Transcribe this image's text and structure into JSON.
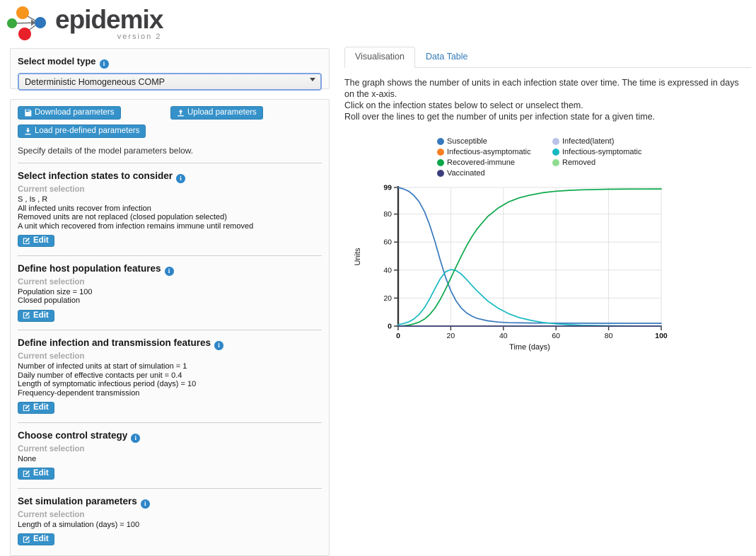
{
  "logo": {
    "title": "epidemix",
    "subtitle": "version 2"
  },
  "model_select": {
    "label": "Select model type",
    "value": "Deterministic Homogeneous COMP"
  },
  "toolbar": {
    "download_label": "Download parameters",
    "upload_label": "Upload parameters",
    "load_predefined_label": "Load pre-defined parameters",
    "instruction": "Specify details of the model parameters below."
  },
  "sections": [
    {
      "title": "Select infection states to consider",
      "subtitle": "Current selection",
      "details": [
        "S , Is , R",
        "All infected units recover from infection",
        "Removed units are not replaced (closed population selected)",
        "A unit which recovered from infection remains immune until removed"
      ],
      "edit_label": "Edit"
    },
    {
      "title": "Define host population features",
      "subtitle": "Current selection",
      "details": [
        "Population size = 100",
        "Closed population"
      ],
      "edit_label": "Edit"
    },
    {
      "title": "Define infection and transmission features",
      "subtitle": "Current selection",
      "details": [
        "Number of infected units at start of simulation = 1",
        "Daily number of effective contacts per unit = 0.4",
        "Length of symptomatic infectious period (days) = 10",
        "Frequency-dependent transmission"
      ],
      "edit_label": "Edit"
    },
    {
      "title": "Choose control strategy",
      "subtitle": "Current selection",
      "details": [
        "None"
      ],
      "edit_label": "Edit"
    },
    {
      "title": "Set simulation parameters",
      "subtitle": "Current selection",
      "details": [
        "Length of a simulation (days) = 100"
      ],
      "edit_label": "Edit"
    }
  ],
  "tabs": [
    {
      "label": "Visualisation",
      "active": true
    },
    {
      "label": "Data Table",
      "active": false
    }
  ],
  "description": [
    "The graph shows the number of units in each infection state over time. The time is expressed in days on the x-axis.",
    "Click on the infection states below to select or unselect them.",
    "Roll over the lines to get the number of units per infection state for a given time."
  ],
  "chart_data": {
    "type": "line",
    "title": "",
    "xlabel": "Time (days)",
    "ylabel": "Units",
    "xlim": [
      0,
      100
    ],
    "ylim": [
      0,
      99
    ],
    "x_ticks": [
      0,
      20,
      40,
      60,
      80,
      100
    ],
    "y_ticks": [
      0,
      20,
      40,
      60,
      80,
      99
    ],
    "grid": true,
    "legend_position": "top",
    "x": [
      0,
      2,
      4,
      6,
      8,
      10,
      12,
      14,
      16,
      18,
      20,
      22,
      24,
      26,
      28,
      30,
      34,
      38,
      42,
      46,
      50,
      55,
      60,
      65,
      70,
      80,
      90,
      100
    ],
    "series": [
      {
        "name": "Susceptible",
        "color": "#3779bd",
        "values": [
          99,
          98,
          96.3,
          93.3,
          88.7,
          81.8,
          72.2,
          60.3,
          47.2,
          34.9,
          25.3,
          18.1,
          12.9,
          9.4,
          7.1,
          5.5,
          3.8,
          2.9,
          2.4,
          2.3,
          2.2,
          2.15,
          2.1,
          2.05,
          2.05,
          2,
          2,
          2
        ]
      },
      {
        "name": "Infected(latent)",
        "color": "#b9c3ea",
        "values": [
          0,
          0,
          0,
          0,
          0,
          0,
          0,
          0,
          0,
          0,
          0,
          0,
          0,
          0,
          0,
          0,
          0,
          0,
          0,
          0,
          0,
          0,
          0,
          0,
          0,
          0,
          0,
          0
        ]
      },
      {
        "name": "Infectious-asymptomatic",
        "color": "#f87e20",
        "values": [
          0,
          0,
          0,
          0,
          0,
          0,
          0,
          0,
          0,
          0,
          0,
          0,
          0,
          0,
          0,
          0,
          0,
          0,
          0,
          0,
          0,
          0,
          0,
          0,
          0,
          0,
          0,
          0
        ]
      },
      {
        "name": "Infectious-symptomatic",
        "color": "#17b8c2",
        "values": [
          1,
          1.8,
          3,
          5.1,
          8.4,
          13.2,
          19.5,
          26.8,
          33.8,
          38.8,
          40.4,
          39.7,
          37.1,
          33.3,
          29.1,
          25.1,
          18,
          12.8,
          8.9,
          6.1,
          4.3,
          2.6,
          1.6,
          1,
          0.6,
          0.25,
          0.1,
          0.05
        ]
      },
      {
        "name": "Recovered-immune",
        "color": "#0aa74a",
        "values": [
          0,
          0.2,
          0.7,
          1.6,
          2.9,
          5,
          8.3,
          12.9,
          19,
          26.3,
          34.3,
          42.2,
          50,
          57.3,
          63.8,
          69.4,
          78.2,
          84.3,
          88.7,
          91.6,
          93.5,
          95.25,
          96.3,
          96.95,
          97.35,
          97.75,
          97.9,
          97.95
        ]
      },
      {
        "name": "Removed",
        "color": "#8edc8e",
        "values": [
          0,
          0,
          0,
          0,
          0,
          0,
          0,
          0,
          0,
          0,
          0,
          0,
          0,
          0,
          0,
          0,
          0,
          0,
          0,
          0,
          0,
          0,
          0,
          0,
          0,
          0,
          0,
          0
        ]
      },
      {
        "name": "Vaccinated",
        "color": "#3b3d7d",
        "values": [
          0,
          0,
          0,
          0,
          0,
          0,
          0,
          0,
          0,
          0,
          0,
          0,
          0,
          0,
          0,
          0,
          0,
          0,
          0,
          0,
          0,
          0,
          0,
          0,
          0,
          0,
          0,
          0
        ]
      }
    ],
    "legend": [
      {
        "name": "Susceptible",
        "color": "#3779bd"
      },
      {
        "name": "Infected(latent)",
        "color": "#b9c3ea"
      },
      {
        "name": "Infectious-asymptomatic",
        "color": "#f87e20"
      },
      {
        "name": "Infectious-symptomatic",
        "color": "#17b8c2"
      },
      {
        "name": "Recovered-immune",
        "color": "#0aa74a"
      },
      {
        "name": "Removed",
        "color": "#8edc8e"
      },
      {
        "name": "Vaccinated",
        "color": "#3b3d7d"
      }
    ]
  }
}
